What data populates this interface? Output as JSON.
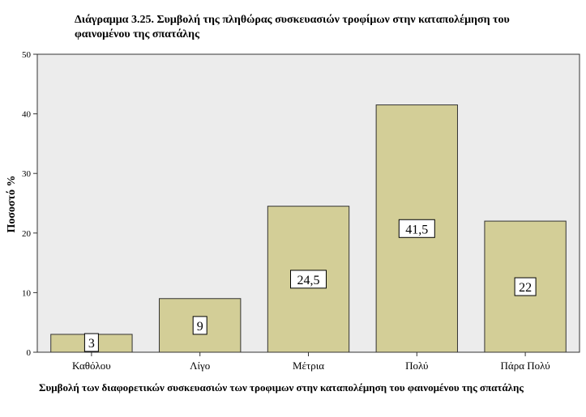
{
  "chart_data": {
    "type": "bar",
    "title": "Διάγραμμα 3.25. Συμβολή της πληθώρας συσκευασιών τροφίμων στην καταπολέμηση του φαινομένου της σπατάλης",
    "xlabel": "Συμβολή των διαφορετικών συσκευασιών των τροφιμων στην καταπολέμηση του φαινομένου της σπατάλης",
    "ylabel": "Ποσοστό %",
    "categories": [
      "Καθόλου",
      "Λίγο",
      "Μέτρια",
      "Πολύ",
      "Πάρα Πολύ"
    ],
    "values": [
      3,
      9,
      24.5,
      41.5,
      22
    ],
    "data_labels": [
      "3",
      "9",
      "24,5",
      "41,5",
      "22"
    ],
    "ylim": [
      0,
      50
    ],
    "yticks": [
      0,
      10,
      20,
      30,
      40,
      50
    ],
    "grid": false,
    "colors": {
      "bar_fill": "#d3ce97",
      "bar_stroke": "#333333",
      "plot_background": "#ececec",
      "axis": "#333333"
    }
  }
}
